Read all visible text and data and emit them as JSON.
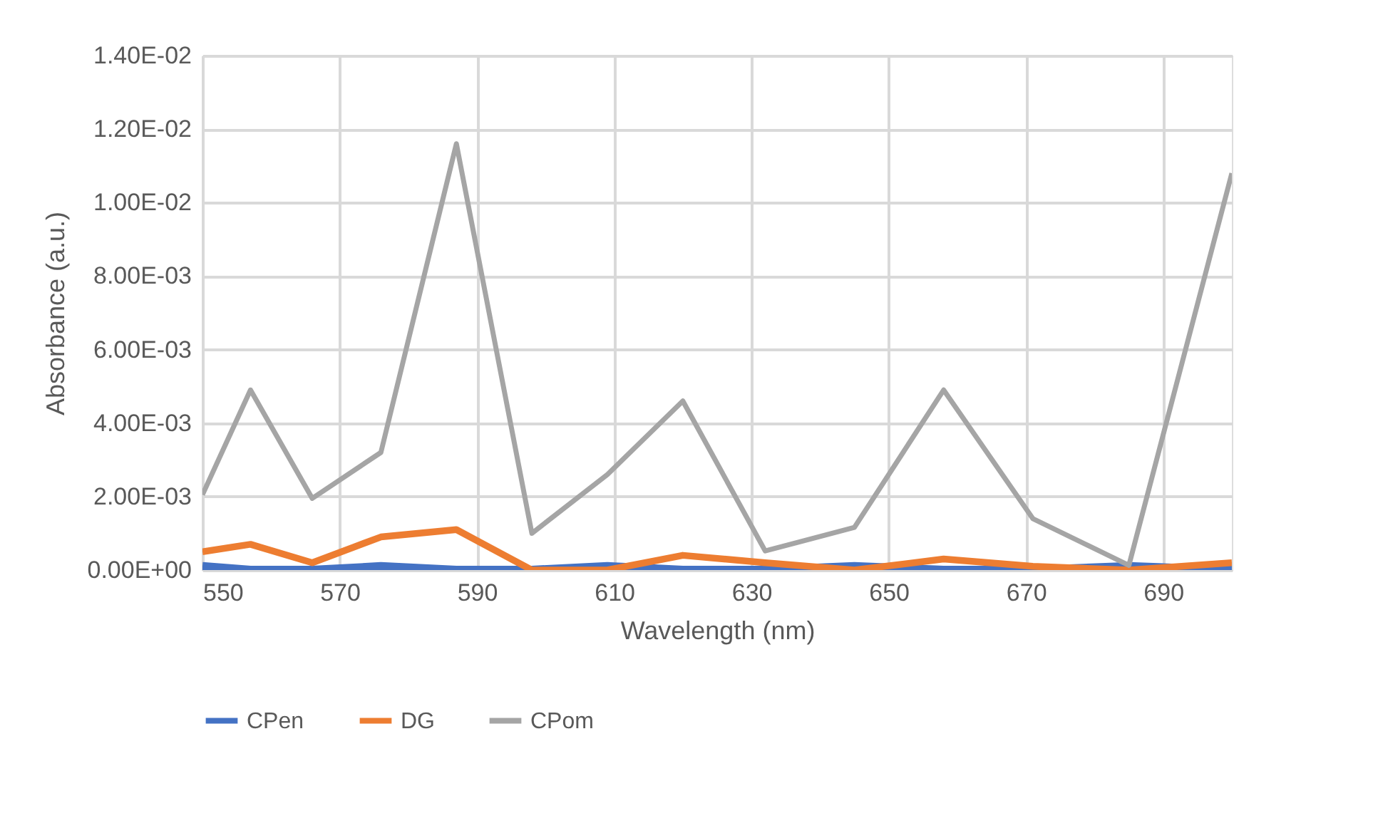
{
  "chart_data": {
    "type": "line",
    "xlabel": "Wavelength (nm)",
    "ylabel": "Absorbance (a.u.)",
    "x": [
      550,
      557,
      566,
      576,
      587,
      598,
      609,
      620,
      632,
      645,
      658,
      671,
      685,
      700
    ],
    "series": [
      {
        "name": "CPen",
        "color": "#4472c4",
        "values": [
          0.0001,
          0,
          0,
          0.0001,
          0,
          0,
          0.0001,
          0,
          0,
          0.0001,
          0,
          0,
          0.0001,
          0
        ]
      },
      {
        "name": "DG",
        "color": "#ed7d31",
        "values": [
          0.0005,
          0.0007,
          0.0002,
          0.0009,
          0.0011,
          0,
          0,
          0.0004,
          0.0002,
          0,
          0.0003,
          0.0001,
          0,
          0.0002
        ]
      },
      {
        "name": "CPom",
        "color": "#a5a5a5",
        "values": [
          0.00205,
          0.0049,
          0.00195,
          0.0032,
          0.0116,
          0.001,
          0.0026,
          0.0046,
          0.00052,
          0.00116,
          0.0049,
          0.0014,
          0.00013,
          0.0108
        ]
      }
    ],
    "xlim": [
      550,
      700
    ],
    "xticks": [
      550,
      570,
      590,
      610,
      630,
      650,
      670,
      690
    ],
    "ylim": [
      0,
      0.014
    ],
    "yticks": [
      {
        "value": 0,
        "label": "0.00E+00"
      },
      {
        "value": 0.002,
        "label": "2.00E-03"
      },
      {
        "value": 0.004,
        "label": "4.00E-03"
      },
      {
        "value": 0.006,
        "label": "6.00E-03"
      },
      {
        "value": 0.008,
        "label": "8.00E-03"
      },
      {
        "value": 0.01,
        "label": "1.00E-02"
      },
      {
        "value": 0.012,
        "label": "1.20E-02"
      },
      {
        "value": 0.014,
        "label": "1.40E-02"
      }
    ],
    "grid": true,
    "legend": "bottom",
    "marker": "none",
    "line_style": "solid"
  }
}
